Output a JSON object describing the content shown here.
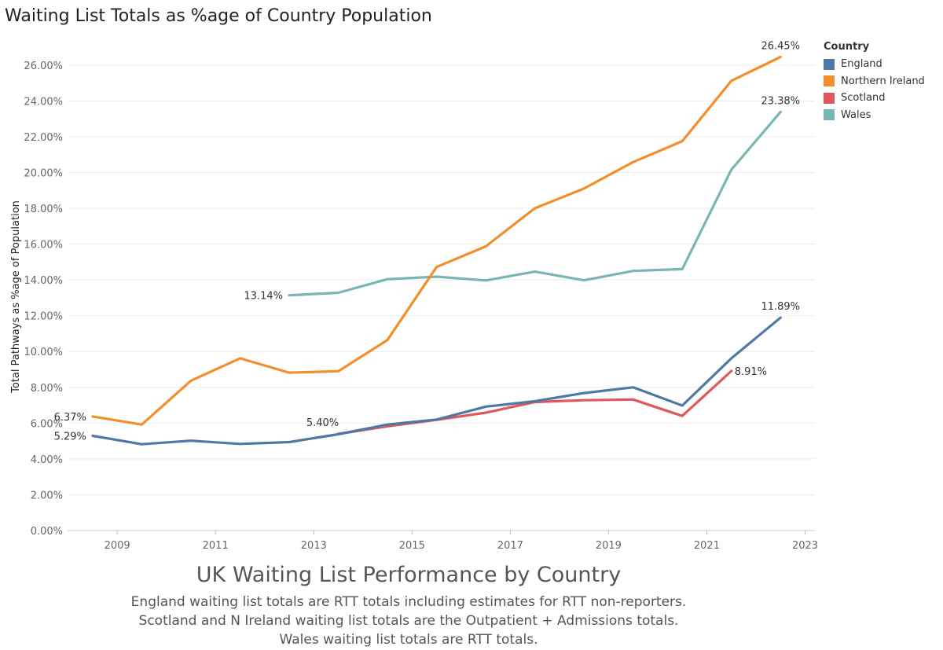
{
  "title": "Waiting List Totals as %age of Country Population",
  "legend": {
    "title": "Country",
    "items": [
      {
        "label": "England",
        "color": "#4e79a7"
      },
      {
        "label": "Northern Ireland",
        "color": "#f28e2b"
      },
      {
        "label": "Scotland",
        "color": "#e15759"
      },
      {
        "label": "Wales",
        "color": "#76b7b2"
      }
    ]
  },
  "caption": {
    "title": "UK Waiting List Performance by Country",
    "lines": [
      "England waiting list totals are RTT totals including estimates for RTT non-reporters.",
      "Scotland and N Ireland waiting list totals are the Outpatient + Admissions totals.",
      "Wales waiting list totals are RTT totals."
    ]
  },
  "chart_data": {
    "type": "line",
    "title": "Waiting List Totals as %age of Country Population",
    "xlabel": "",
    "ylabel": "Total Pathways as %age of Population",
    "xlim": [
      2007.99,
      2023.2
    ],
    "ylim": [
      0,
      27
    ],
    "x_ticks": [
      "2009",
      "2011",
      "2013",
      "2015",
      "2017",
      "2019",
      "2021",
      "2023"
    ],
    "y_ticks": [
      "0.00%",
      "2.00%",
      "4.00%",
      "6.00%",
      "8.00%",
      "10.00%",
      "12.00%",
      "14.00%",
      "16.00%",
      "18.00%",
      "20.00%",
      "22.00%",
      "24.00%",
      "26.00%"
    ],
    "grid": true,
    "legend_position": "right",
    "series": [
      {
        "name": "England",
        "color": "#4e79a7",
        "x": [
          2008.5,
          2009.5,
          2010.5,
          2011.5,
          2012.5,
          2013.5,
          2014.5,
          2015.5,
          2016.5,
          2017.5,
          2018.5,
          2019.5,
          2020.5,
          2021.5,
          2022.5
        ],
        "y": [
          5.29,
          4.82,
          5.02,
          4.84,
          4.94,
          5.38,
          5.92,
          6.2,
          6.92,
          7.22,
          7.68,
          8.0,
          6.98,
          9.62,
          11.89
        ],
        "labels": [
          {
            "index": 0,
            "text": "5.29%",
            "side": "left"
          },
          {
            "index": 14,
            "text": "11.89%",
            "side": "above"
          }
        ]
      },
      {
        "name": "Northern Ireland",
        "color": "#f28e2b",
        "x": [
          2008.5,
          2009.5,
          2010.5,
          2011.5,
          2012.5,
          2013.5,
          2014.5,
          2015.5,
          2016.5,
          2017.5,
          2018.5,
          2019.5,
          2020.5,
          2021.5,
          2022.5
        ],
        "y": [
          6.37,
          5.92,
          8.37,
          9.62,
          8.82,
          8.9,
          10.64,
          14.72,
          15.87,
          18.0,
          19.1,
          20.58,
          21.75,
          25.12,
          26.45
        ],
        "labels": [
          {
            "index": 0,
            "text": "6.37%",
            "side": "left"
          },
          {
            "index": 14,
            "text": "26.45%",
            "side": "above"
          }
        ]
      },
      {
        "name": "Scotland",
        "color": "#e15759",
        "x": [
          2013.5,
          2014.5,
          2015.5,
          2016.5,
          2017.5,
          2018.5,
          2019.5,
          2020.5,
          2021.5
        ],
        "y": [
          5.4,
          5.82,
          6.18,
          6.58,
          7.18,
          7.28,
          7.32,
          6.4,
          8.91
        ],
        "labels": [
          {
            "index": 0,
            "text": "5.40%",
            "side": "above-left"
          },
          {
            "index": 8,
            "text": "8.91%",
            "side": "right"
          }
        ]
      },
      {
        "name": "Wales",
        "color": "#76b7b2",
        "x": [
          2012.5,
          2013.5,
          2014.5,
          2015.5,
          2016.5,
          2017.5,
          2018.5,
          2019.5,
          2020.5,
          2021.5,
          2022.5
        ],
        "y": [
          13.14,
          13.28,
          14.04,
          14.18,
          13.97,
          14.46,
          13.98,
          14.5,
          14.6,
          20.16,
          23.38
        ],
        "labels": [
          {
            "index": 0,
            "text": "13.14%",
            "side": "left"
          },
          {
            "index": 10,
            "text": "23.38%",
            "side": "above"
          }
        ]
      }
    ]
  }
}
